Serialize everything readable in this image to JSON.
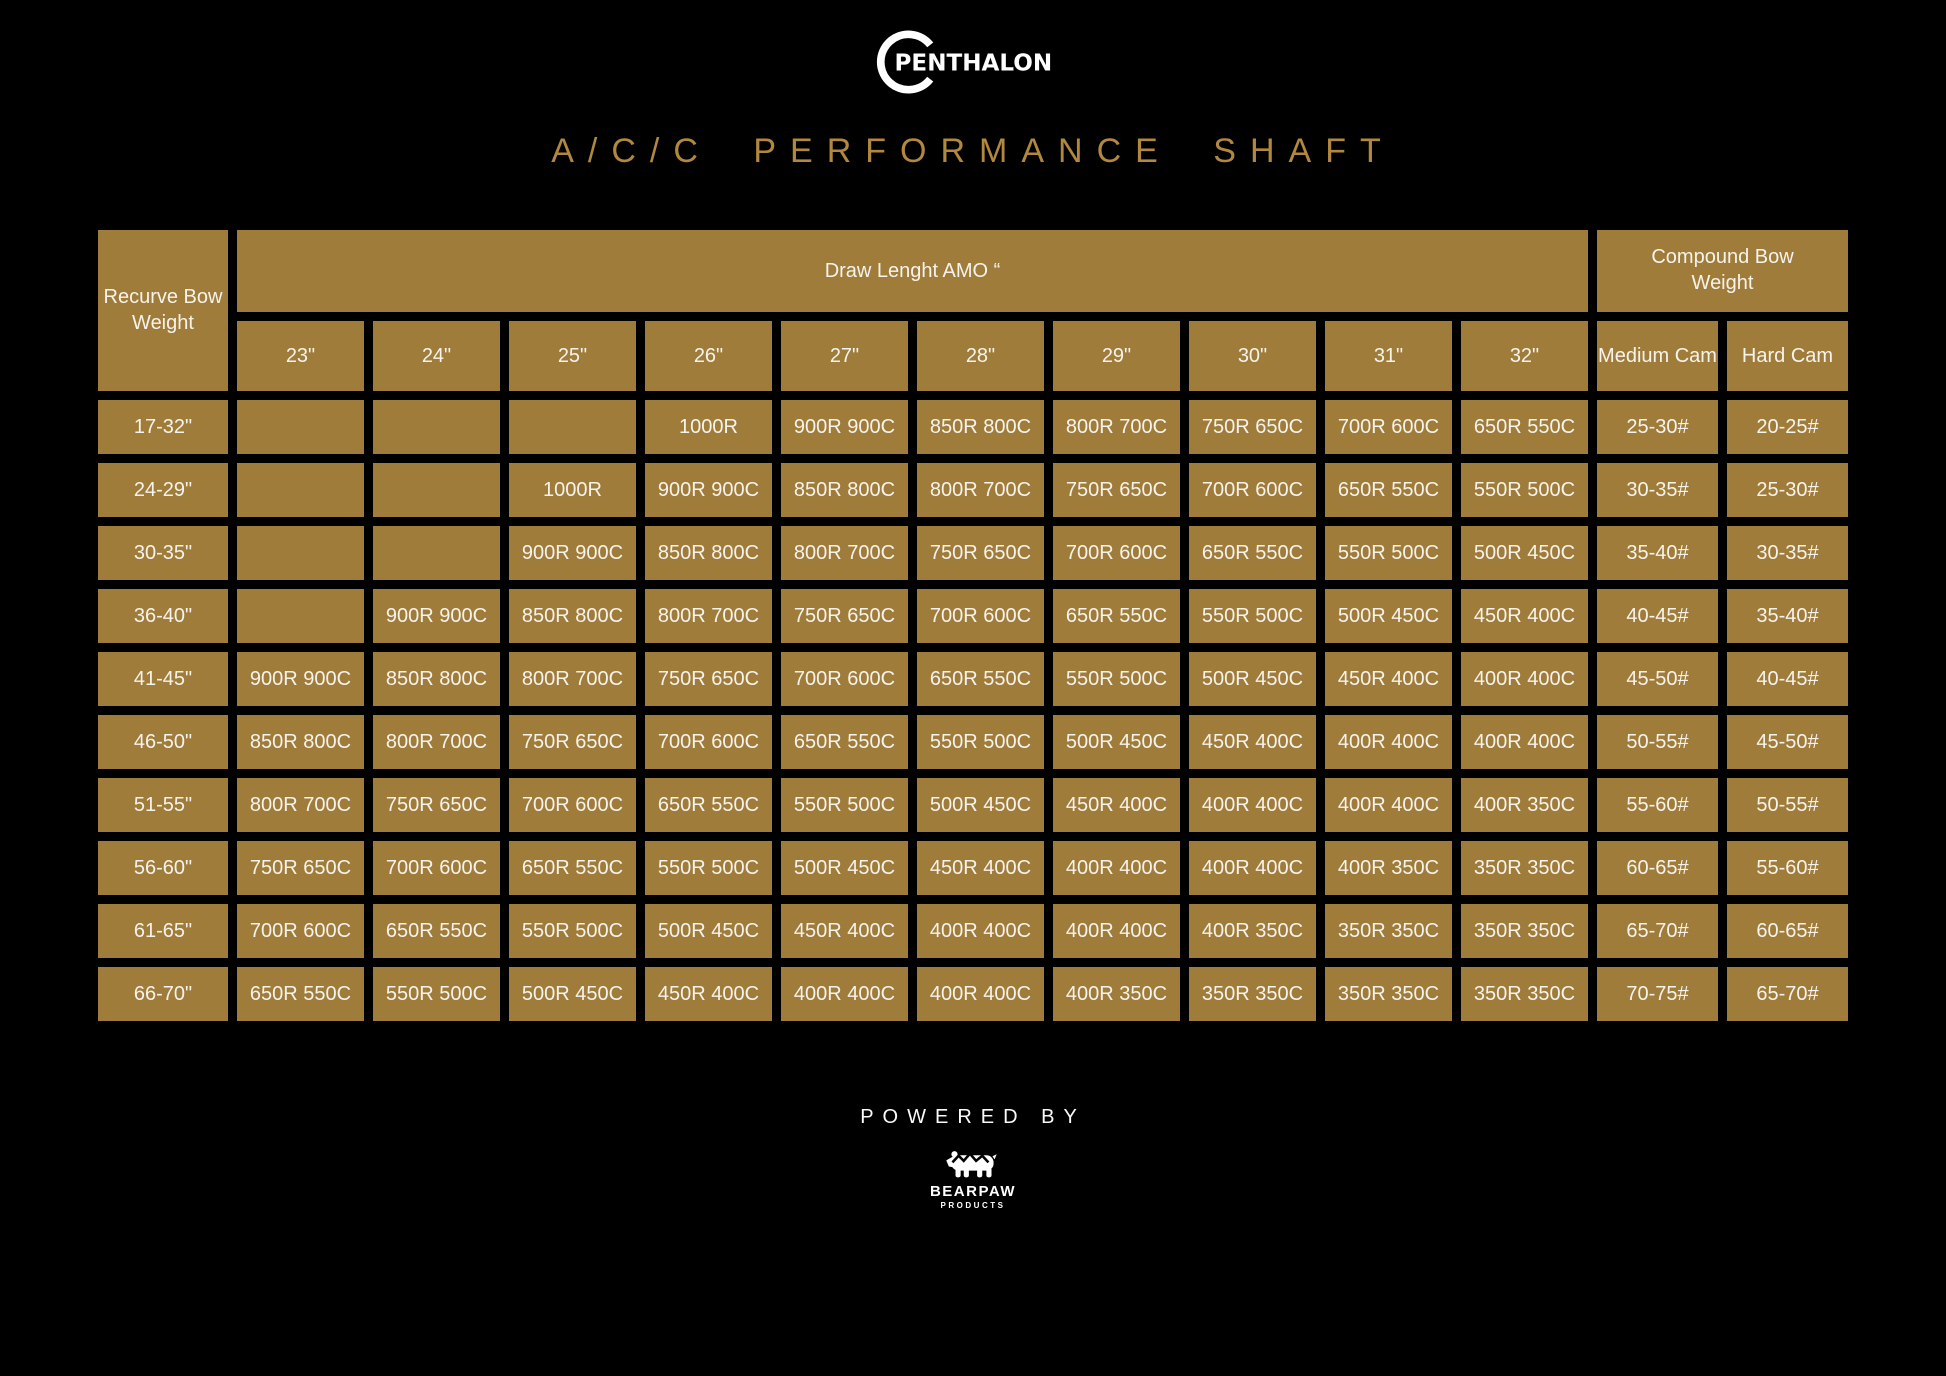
{
  "brand": {
    "logo_text": "PENTHALON"
  },
  "header": {
    "title": "A/C/C PERFORMANCE SHAFT"
  },
  "colors": {
    "background": "#000000",
    "cell_gold": "#A07C3B",
    "title_gold": "#B1883E",
    "text_white": "#F6F3EC"
  },
  "chart_data": {
    "type": "table",
    "title": "A/C/C PERFORMANCE SHAFT",
    "row_header": "Recurve Bow Weight",
    "column_groups": {
      "draw_length": "Draw Lenght AMO “",
      "compound": "Compound Bow Weight"
    },
    "draw_length_columns": [
      "23\"",
      "24\"",
      "25\"",
      "26\"",
      "27\"",
      "28\"",
      "29\"",
      "30\"",
      "31\"",
      "32\""
    ],
    "compound_columns": [
      "Medium Cam",
      "Hard Cam"
    ],
    "rows": [
      {
        "label": "17-32\"",
        "cells": [
          "",
          "",
          "",
          "1000R",
          "900R 900C",
          "850R 800C",
          "800R 700C",
          "750R 650C",
          "700R 600C",
          "650R 550C"
        ],
        "medium": "25-30#",
        "hard": "20-25#"
      },
      {
        "label": "24-29\"",
        "cells": [
          "",
          "",
          "1000R",
          "900R 900C",
          "850R 800C",
          "800R 700C",
          "750R 650C",
          "700R 600C",
          "650R 550C",
          "550R 500C"
        ],
        "medium": "30-35#",
        "hard": "25-30#"
      },
      {
        "label": "30-35\"",
        "cells": [
          "",
          "",
          "900R 900C",
          "850R 800C",
          "800R 700C",
          "750R 650C",
          "700R 600C",
          "650R 550C",
          "550R 500C",
          "500R 450C"
        ],
        "medium": "35-40#",
        "hard": "30-35#"
      },
      {
        "label": "36-40\"",
        "cells": [
          "",
          "900R 900C",
          "850R 800C",
          "800R 700C",
          "750R 650C",
          "700R 600C",
          "650R 550C",
          "550R 500C",
          "500R 450C",
          "450R 400C"
        ],
        "medium": "40-45#",
        "hard": "35-40#"
      },
      {
        "label": "41-45\"",
        "cells": [
          "900R 900C",
          "850R 800C",
          "800R 700C",
          "750R 650C",
          "700R 600C",
          "650R 550C",
          "550R 500C",
          "500R 450C",
          "450R 400C",
          "400R 400C"
        ],
        "medium": "45-50#",
        "hard": "40-45#"
      },
      {
        "label": "46-50\"",
        "cells": [
          "850R 800C",
          "800R 700C",
          "750R 650C",
          "700R 600C",
          "650R 550C",
          "550R 500C",
          "500R 450C",
          "450R 400C",
          "400R 400C",
          "400R 400C"
        ],
        "medium": "50-55#",
        "hard": "45-50#"
      },
      {
        "label": "51-55\"",
        "cells": [
          "800R 700C",
          "750R 650C",
          "700R 600C",
          "650R 550C",
          "550R 500C",
          "500R 450C",
          "450R 400C",
          "400R 400C",
          "400R 400C",
          "400R 350C"
        ],
        "medium": "55-60#",
        "hard": "50-55#"
      },
      {
        "label": "56-60\"",
        "cells": [
          "750R 650C",
          "700R 600C",
          "650R 550C",
          "550R 500C",
          "500R 450C",
          "450R 400C",
          "400R 400C",
          "400R 400C",
          "400R 350C",
          "350R 350C"
        ],
        "medium": "60-65#",
        "hard": "55-60#"
      },
      {
        "label": "61-65\"",
        "cells": [
          "700R 600C",
          "650R 550C",
          "550R 500C",
          "500R 450C",
          "450R 400C",
          "400R 400C",
          "400R 400C",
          "400R 350C",
          "350R 350C",
          "350R 350C"
        ],
        "medium": "65-70#",
        "hard": "60-65#"
      },
      {
        "label": "66-70\"",
        "cells": [
          "650R 550C",
          "550R 500C",
          "500R 450C",
          "450R 400C",
          "400R 400C",
          "400R 400C",
          "400R 350C",
          "350R 350C",
          "350R 350C",
          "350R 350C"
        ],
        "medium": "70-75#",
        "hard": "65-70#"
      }
    ]
  },
  "footer": {
    "powered_by": "POWERED BY",
    "logo_name": "BEARPAW",
    "logo_sub": "PRODUCTS"
  }
}
